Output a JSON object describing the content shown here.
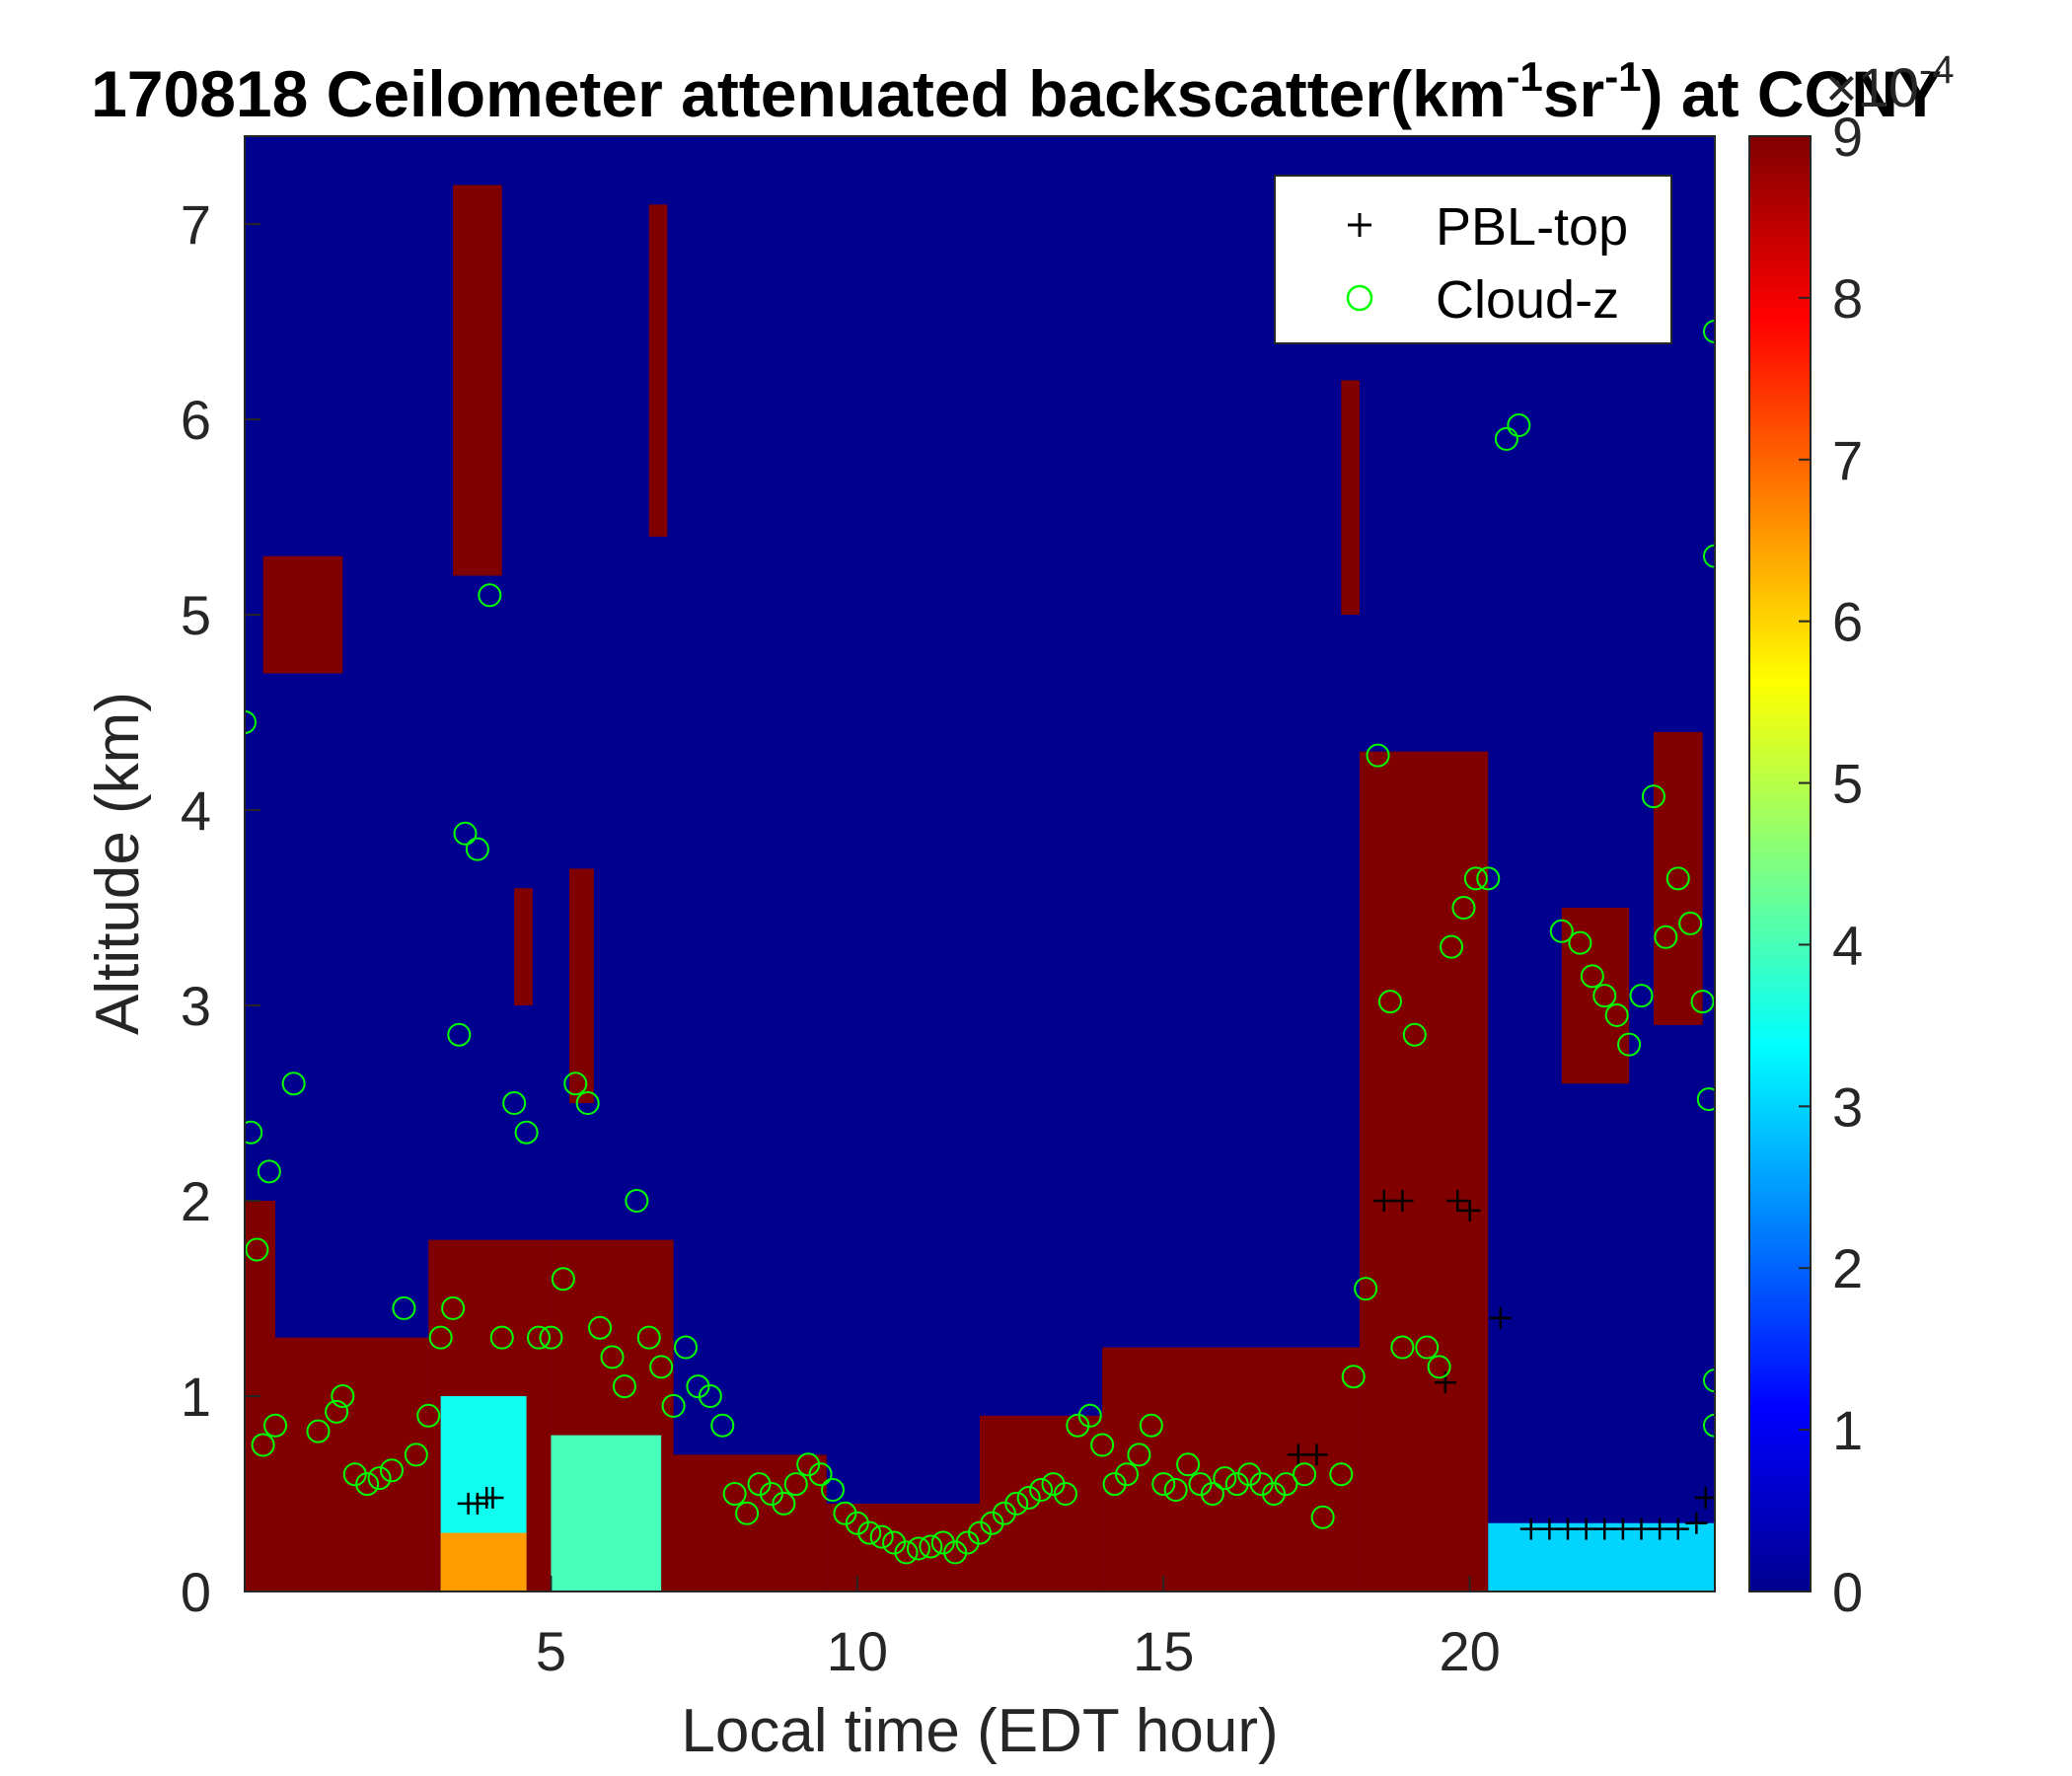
{
  "chart_data": {
    "type": "heatmap",
    "title": "170818 Ceilometer attenuated backscatter(km",
    "title_sup1": "-1",
    "title_mid": "sr",
    "title_sup2": "-1",
    "title_end": ") at CCNY",
    "xlabel": "Local time (EDT hour)",
    "ylabel": "Altitude (km)",
    "xlim": [
      0,
      24
    ],
    "ylim": [
      0,
      7.45
    ],
    "xticks": [
      5,
      10,
      15,
      20
    ],
    "xtick_labels": [
      "5",
      "10",
      "15",
      "20"
    ],
    "yticks": [
      0,
      1,
      2,
      3,
      4,
      5,
      6,
      7
    ],
    "ytick_labels": [
      "0",
      "1",
      "2",
      "3",
      "4",
      "5",
      "6",
      "7"
    ],
    "colorbar": {
      "colormap": "jet",
      "clim": [
        0,
        9
      ],
      "ticks": [
        0,
        1,
        2,
        3,
        4,
        5,
        6,
        7,
        8,
        9
      ],
      "tick_labels": [
        "0",
        "1",
        "2",
        "3",
        "4",
        "5",
        "6",
        "7",
        "8",
        "9"
      ],
      "multiplier_base": "×10",
      "multiplier_exp": "-4"
    },
    "legend": {
      "position": "top-right",
      "entries": [
        {
          "label": "PBL-top",
          "marker": "plus",
          "color": "#000000"
        },
        {
          "label": "Cloud-z",
          "marker": "circle",
          "color": "#00ff00"
        }
      ]
    },
    "backscatter_regions": [
      {
        "x0": 0,
        "x1": 0.5,
        "y0": 0.0,
        "y1": 2.0,
        "value": 9
      },
      {
        "x0": 0.5,
        "x1": 3.0,
        "y0": 0.0,
        "y1": 1.3,
        "value": 9
      },
      {
        "x0": 3.0,
        "x1": 5.0,
        "y0": 0.0,
        "y1": 1.8,
        "value": 9
      },
      {
        "x0": 5.0,
        "x1": 7.0,
        "y0": 0.0,
        "y1": 1.8,
        "value": 9
      },
      {
        "x0": 3.2,
        "x1": 4.6,
        "y0": 0.0,
        "y1": 1.0,
        "value": 3.5
      },
      {
        "x0": 5.0,
        "x1": 6.8,
        "y0": 0.0,
        "y1": 0.8,
        "value": 4
      },
      {
        "x0": 3.2,
        "x1": 4.6,
        "y0": 0.0,
        "y1": 0.3,
        "value": 6.5
      },
      {
        "x0": 7.0,
        "x1": 9.5,
        "y0": 0.0,
        "y1": 0.7,
        "value": 9
      },
      {
        "x0": 9.5,
        "x1": 12.0,
        "y0": 0.0,
        "y1": 0.45,
        "value": 9
      },
      {
        "x0": 12.0,
        "x1": 14.0,
        "y0": 0.0,
        "y1": 0.9,
        "value": 9
      },
      {
        "x0": 14.0,
        "x1": 18.2,
        "y0": 0.0,
        "y1": 1.25,
        "value": 9
      },
      {
        "x0": 18.2,
        "x1": 20.3,
        "y0": 0.0,
        "y1": 4.3,
        "value": 9
      },
      {
        "x0": 20.3,
        "x1": 24.0,
        "y0": 0.0,
        "y1": 0.35,
        "value": 3
      },
      {
        "x0": 0.3,
        "x1": 1.6,
        "y0": 4.7,
        "y1": 5.3,
        "value": 9
      },
      {
        "x0": 3.4,
        "x1": 4.2,
        "y0": 5.2,
        "y1": 7.2,
        "value": 9
      },
      {
        "x0": 6.6,
        "x1": 6.9,
        "y0": 5.4,
        "y1": 7.1,
        "value": 9
      },
      {
        "x0": 17.9,
        "x1": 18.2,
        "y0": 5.0,
        "y1": 6.2,
        "value": 9
      },
      {
        "x0": 21.5,
        "x1": 22.6,
        "y0": 2.6,
        "y1": 3.5,
        "value": 9
      },
      {
        "x0": 23.0,
        "x1": 23.8,
        "y0": 2.9,
        "y1": 4.4,
        "value": 9
      },
      {
        "x0": 5.3,
        "x1": 5.7,
        "y0": 2.5,
        "y1": 3.7,
        "value": 9
      },
      {
        "x0": 4.4,
        "x1": 4.7,
        "y0": 3.0,
        "y1": 3.6,
        "value": 9
      }
    ],
    "series": [
      {
        "name": "PBL-top",
        "marker": "plus",
        "x": [
          3.65,
          3.8,
          3.95,
          4.05,
          17.2,
          17.5,
          18.6,
          18.9,
          19.8,
          20.0,
          20.5,
          19.6,
          21.0,
          21.3,
          21.6,
          21.9,
          22.2,
          22.5,
          22.8,
          23.1,
          23.4,
          23.7,
          23.85
        ],
        "y": [
          0.45,
          0.45,
          0.48,
          0.48,
          0.7,
          0.7,
          2.0,
          2.0,
          2.0,
          1.95,
          1.4,
          1.07,
          0.32,
          0.32,
          0.32,
          0.32,
          0.32,
          0.32,
          0.32,
          0.32,
          0.32,
          0.35,
          0.48
        ]
      },
      {
        "name": "Cloud-z",
        "marker": "circle",
        "x": [
          0.0,
          0.1,
          0.2,
          0.3,
          0.4,
          0.5,
          0.8,
          1.2,
          1.5,
          1.6,
          1.8,
          2.0,
          2.2,
          2.4,
          2.6,
          2.8,
          3.0,
          3.2,
          3.4,
          3.5,
          3.6,
          3.8,
          4.0,
          4.2,
          4.4,
          4.6,
          4.8,
          5.0,
          5.2,
          5.4,
          5.6,
          5.8,
          6.0,
          6.2,
          6.4,
          6.6,
          6.8,
          7.0,
          7.2,
          7.4,
          7.6,
          7.8,
          8.0,
          8.2,
          8.4,
          8.6,
          8.8,
          9.0,
          9.2,
          9.4,
          9.6,
          9.8,
          10.0,
          10.2,
          10.4,
          10.6,
          10.8,
          11.0,
          11.2,
          11.4,
          11.6,
          11.8,
          12.0,
          12.2,
          12.4,
          12.6,
          12.8,
          13.0,
          13.2,
          13.4,
          13.6,
          13.8,
          14.0,
          14.2,
          14.4,
          14.6,
          14.8,
          15.0,
          15.2,
          15.4,
          15.6,
          15.8,
          16.0,
          16.2,
          16.4,
          16.6,
          16.8,
          17.0,
          17.3,
          17.6,
          17.9,
          18.1,
          18.3,
          18.5,
          18.7,
          18.9,
          19.1,
          19.3,
          19.5,
          19.7,
          19.9,
          20.1,
          20.3,
          20.6,
          20.8,
          21.5,
          21.8,
          22.0,
          22.2,
          22.4,
          22.6,
          22.8,
          23.0,
          23.2,
          23.4,
          23.6,
          23.8,
          23.9,
          24.0,
          24.0,
          24.0,
          24.0
        ],
        "y": [
          4.45,
          2.35,
          1.75,
          0.75,
          2.15,
          0.85,
          2.6,
          0.82,
          0.92,
          1.0,
          0.6,
          0.55,
          0.58,
          0.62,
          1.45,
          0.7,
          0.9,
          1.3,
          1.45,
          2.85,
          3.88,
          3.8,
          5.1,
          1.3,
          2.5,
          2.35,
          1.3,
          1.3,
          1.6,
          2.6,
          2.5,
          1.35,
          1.2,
          1.05,
          2.0,
          1.3,
          1.15,
          0.95,
          1.25,
          1.05,
          1.0,
          0.85,
          0.5,
          0.4,
          0.55,
          0.5,
          0.45,
          0.55,
          0.65,
          0.6,
          0.52,
          0.4,
          0.35,
          0.3,
          0.28,
          0.25,
          0.2,
          0.22,
          0.23,
          0.25,
          0.2,
          0.25,
          0.3,
          0.35,
          0.4,
          0.45,
          0.48,
          0.52,
          0.55,
          0.5,
          0.85,
          0.9,
          0.75,
          0.55,
          0.6,
          0.7,
          0.85,
          0.55,
          0.52,
          0.65,
          0.55,
          0.5,
          0.58,
          0.55,
          0.6,
          0.55,
          0.5,
          0.55,
          0.6,
          0.38,
          0.6,
          1.1,
          1.55,
          4.28,
          3.02,
          1.25,
          2.85,
          1.25,
          1.15,
          3.3,
          3.5,
          3.65,
          3.65,
          5.9,
          5.97,
          3.38,
          3.32,
          3.15,
          3.05,
          2.95,
          2.8,
          3.05,
          4.07,
          3.35,
          3.65,
          3.42,
          3.02,
          2.52,
          6.45,
          5.3,
          1.08,
          0.85
        ]
      }
    ]
  }
}
